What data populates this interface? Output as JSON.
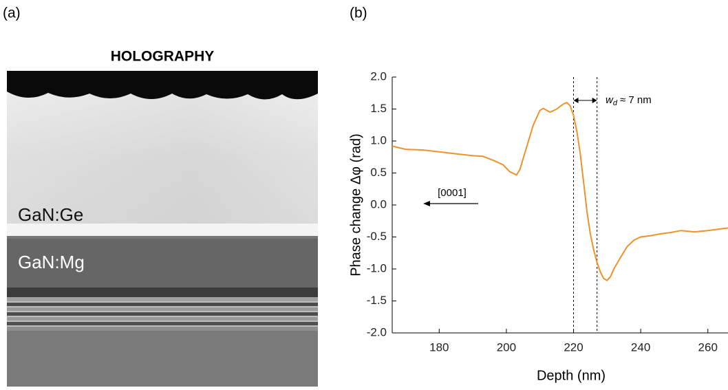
{
  "panels": {
    "a": {
      "label": "(a)",
      "title": "HOLOGRAPHY",
      "layer_top": "GaN:Ge",
      "layer_bottom": "GaN:Mg"
    },
    "b": {
      "label": "(b)"
    }
  },
  "chart_data": {
    "type": "line",
    "x_label": "Depth (nm)",
    "y_label": "Phase change Δφ (rad)",
    "xlim": [
      166,
      266
    ],
    "ylim": [
      -2,
      2
    ],
    "xticks": [
      180,
      200,
      220,
      240,
      260
    ],
    "yticks": [
      {
        "value": 2,
        "label": "2.0"
      },
      1.5,
      {
        "value": 1,
        "label": "1.0"
      },
      0.5,
      {
        "value": 0,
        "label": "0.0"
      },
      -0.5,
      {
        "value": -1,
        "label": "-1.0"
      },
      -1.5,
      {
        "value": -2,
        "label": "-2.0"
      }
    ],
    "vlines": [
      220,
      227
    ],
    "annotations": {
      "direction": "[0001]",
      "width_symbol": "w",
      "width_subscript": "d",
      "width_value": "≈ 7 nm"
    },
    "series": [
      {
        "color": "#f0912a",
        "x": [
          166,
          170,
          175,
          180,
          185,
          190,
          193,
          196,
          199,
          201,
          203,
          204,
          206,
          208,
          210,
          211,
          213,
          215,
          217,
          218,
          219,
          220,
          221,
          222,
          223,
          224,
          225,
          226,
          227,
          228,
          229,
          230,
          231,
          232,
          234,
          236,
          238,
          240,
          243,
          246,
          249,
          252,
          256,
          260,
          263,
          266
        ],
        "values": [
          0.92,
          0.87,
          0.86,
          0.83,
          0.8,
          0.77,
          0.76,
          0.7,
          0.63,
          0.52,
          0.47,
          0.55,
          0.9,
          1.25,
          1.48,
          1.51,
          1.45,
          1.5,
          1.58,
          1.6,
          1.55,
          1.4,
          1.15,
          0.8,
          0.35,
          -0.1,
          -0.45,
          -0.7,
          -0.9,
          -1.05,
          -1.15,
          -1.18,
          -1.12,
          -1.0,
          -0.82,
          -0.65,
          -0.55,
          -0.5,
          -0.48,
          -0.45,
          -0.43,
          -0.4,
          -0.42,
          -0.4,
          -0.38,
          -0.36
        ]
      }
    ]
  }
}
